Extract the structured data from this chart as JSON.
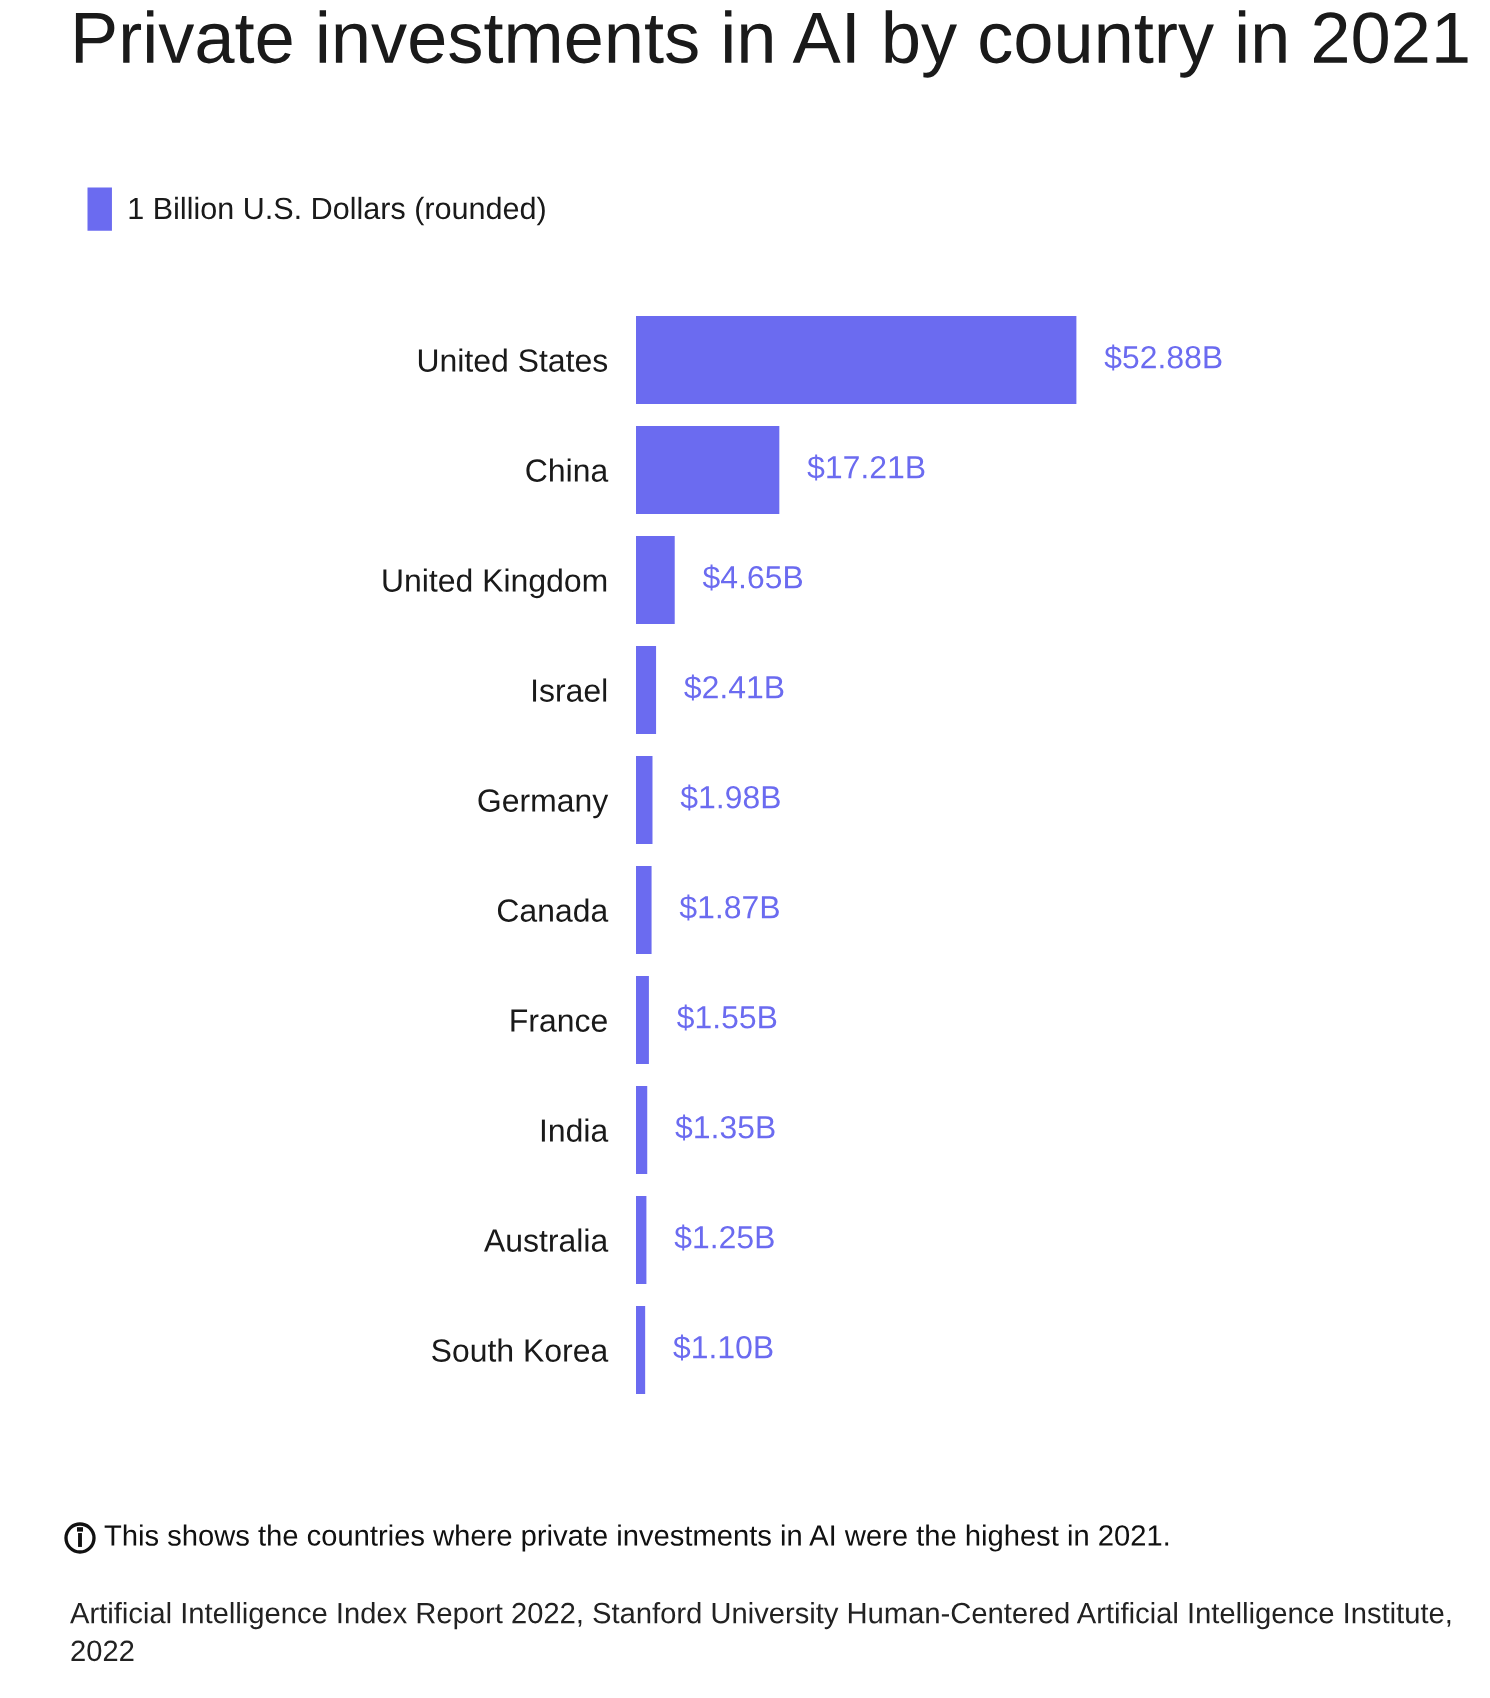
{
  "chart_data": {
    "type": "bar",
    "orientation": "horizontal",
    "title": "Private investments in AI by country in 2021",
    "categories": [
      "United States",
      "China",
      "United Kingdom",
      "Israel",
      "Germany",
      "Canada",
      "France",
      "India",
      "Australia",
      "South Korea"
    ],
    "series": [
      {
        "name": "1 Billion U.S. Dollars (rounded)",
        "color": "#6b6bf0",
        "values": [
          52.88,
          17.21,
          4.65,
          2.41,
          1.98,
          1.87,
          1.55,
          1.35,
          1.25,
          1.1
        ],
        "value_labels": [
          "$52.88B",
          "$17.21B",
          "$4.65B",
          "$2.41B",
          "$1.98B",
          "$1.87B",
          "$1.55B",
          "$1.35B",
          "$1.25B",
          "$1.10B"
        ]
      }
    ],
    "legend": "top left",
    "grid": false,
    "annotations": [
      "This shows the countries where private investments in AI were the highest in 2021.",
      "Artificial Intelligence Index Report 2022, Stanford University Human-Centered Artificial Intelligence Institute, 2022"
    ]
  }
}
